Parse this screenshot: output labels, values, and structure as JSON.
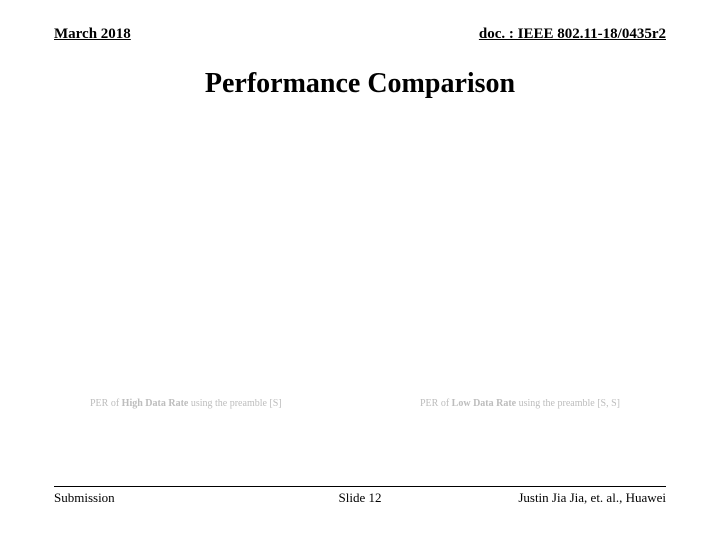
{
  "header": {
    "date": "March 2018",
    "doc": "doc. : IEEE 802.11-18/0435r2"
  },
  "title": "Performance Comparison",
  "captions": {
    "left_pre": "PER of ",
    "left_bold": "High Data Rate",
    "left_post": " using the preamble [S]",
    "right_pre": "PER of ",
    "right_bold": "Low Data Rate",
    "right_post": " using the preamble [S, S]"
  },
  "footer": {
    "left": "Submission",
    "center": "Slide 12",
    "right": "Justin Jia Jia, et. al., Huawei"
  },
  "colors": {
    "text": "#000000",
    "caption": "#bdbdbd",
    "background": "#ffffff"
  }
}
